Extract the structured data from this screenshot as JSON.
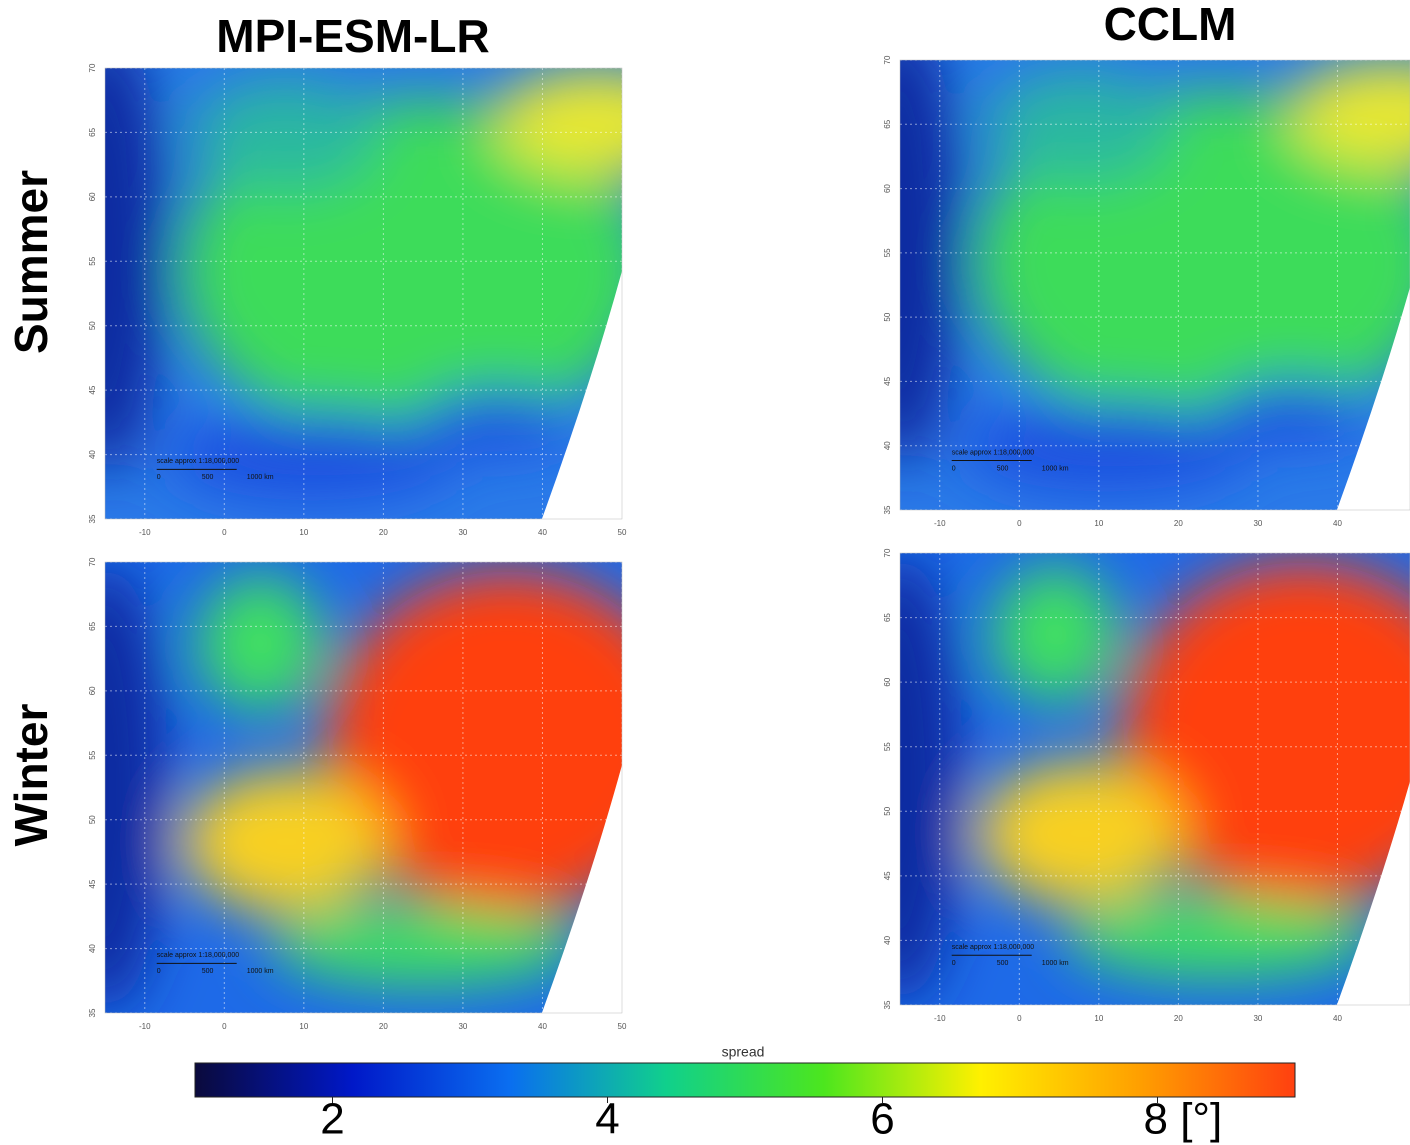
{
  "columns": [
    "MPI-ESM-LR",
    "CCLM"
  ],
  "rows": [
    "Summer",
    "Winter"
  ],
  "map_axes": {
    "xlim": [
      -15,
      50
    ],
    "ylim": [
      35,
      70
    ],
    "xticks": [
      -10,
      0,
      10,
      20,
      30,
      40,
      50
    ],
    "yticks": [
      35,
      40,
      45,
      50,
      55,
      60,
      65,
      70
    ]
  },
  "map_scale": {
    "title": "scale approx 1:18,000,000",
    "labels": [
      "0",
      "500",
      "1000 km"
    ]
  },
  "colorbar": {
    "label": "spread",
    "lim": [
      1,
      9
    ],
    "ticks": [
      2,
      4,
      6,
      {
        "value": 8,
        "label": "8 [°]"
      }
    ],
    "colormap": [
      "#0a0a3c",
      "#0018c8",
      "#0a6ef0",
      "#10d08c",
      "#4ce61e",
      "#fff000",
      "#ffa000",
      "#ff4010"
    ]
  }
}
